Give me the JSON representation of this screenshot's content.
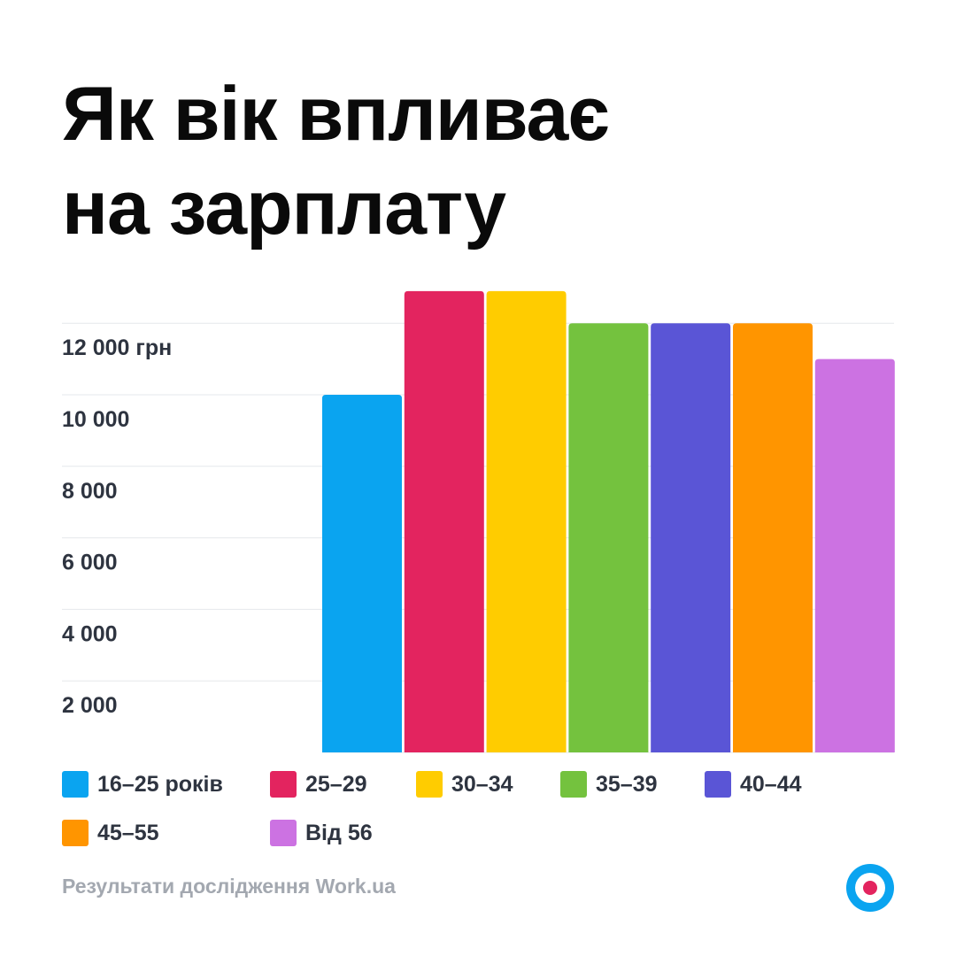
{
  "title": {
    "line1": "Як вік впливає",
    "line2": "на зарплату"
  },
  "source": "Результати дослідження Work.ua",
  "logo_icon": "work-ua-target-icon",
  "colors": {
    "accent_blue": "#0aa4f0",
    "accent_red": "#e3245f",
    "gridline": "#e6e8ec",
    "tick_text": "#2e3440",
    "source_text": "#a3a8b0"
  },
  "chart_data": {
    "type": "bar",
    "categories": [
      "16–25 років",
      "25–29",
      "30–34",
      "35–39",
      "40–44",
      "45–55",
      "Від 56"
    ],
    "values": [
      10000,
      12900,
      12900,
      12000,
      12000,
      12000,
      11000
    ],
    "colors": [
      "#0aa4f0",
      "#e3245f",
      "#ffcc00",
      "#74c23e",
      "#5a55d6",
      "#ff9500",
      "#cc72e2"
    ],
    "ylim": [
      0,
      12000
    ],
    "yticks": [
      2000,
      4000,
      6000,
      8000,
      10000,
      12000
    ],
    "ytick_labels": [
      "2 000",
      "4 000",
      "6 000",
      "8 000",
      "10 000",
      "12 000 грн"
    ],
    "grid": true,
    "legend_position": "bottom"
  }
}
